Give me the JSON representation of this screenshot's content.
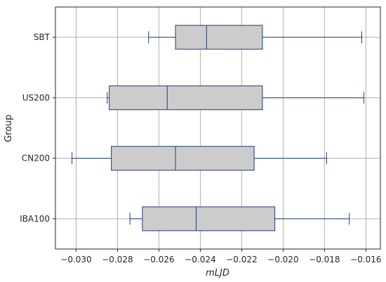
{
  "chart_data": {
    "type": "boxplot",
    "orientation": "horizontal",
    "xlabel": "mLJD",
    "ylabel": "Group",
    "xlim": [
      -0.031,
      -0.0153
    ],
    "xticks": [
      -0.03,
      -0.028,
      -0.026,
      -0.024,
      -0.022,
      -0.02,
      -0.018,
      -0.016
    ],
    "xtick_labels": [
      "−0.030",
      "−0.028",
      "−0.026",
      "−0.024",
      "−0.022",
      "−0.020",
      "−0.018",
      "−0.016"
    ],
    "grid": true,
    "categories": [
      "SBT",
      "US200",
      "CN200",
      "IBA100"
    ],
    "boxes": [
      {
        "label": "SBT",
        "whisker_low": -0.0265,
        "q1": -0.0252,
        "median": -0.0237,
        "q3": -0.021,
        "whisker_high": -0.0162
      },
      {
        "label": "US200",
        "whisker_low": -0.0285,
        "q1": -0.0284,
        "median": -0.0256,
        "q3": -0.021,
        "whisker_high": -0.0161
      },
      {
        "label": "CN200",
        "whisker_low": -0.0302,
        "q1": -0.0283,
        "median": -0.0252,
        "q3": -0.0214,
        "whisker_high": -0.0179
      },
      {
        "label": "IBA100",
        "whisker_low": -0.0274,
        "q1": -0.0268,
        "median": -0.0242,
        "q3": -0.0204,
        "whisker_high": -0.0168
      }
    ],
    "colors": {
      "box_fill": "#cccccc",
      "box_edge": "#1f3c7a",
      "grid": "#b0b0b0"
    }
  }
}
